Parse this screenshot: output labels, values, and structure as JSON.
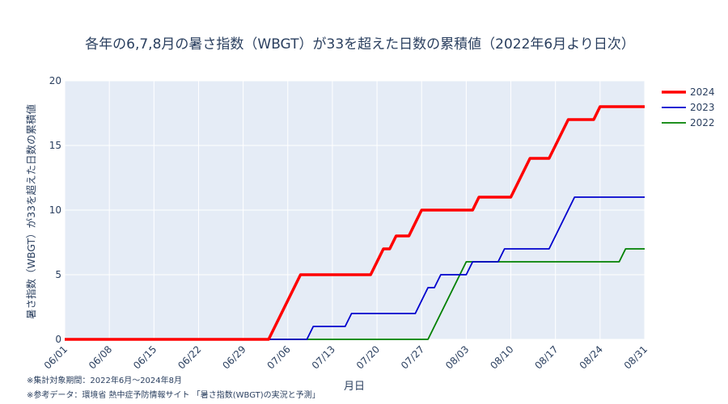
{
  "chart_data": {
    "type": "line",
    "title": "各年の6,7,8月の暑さ指数（WBGT）が33を超えた日数の累積値（2022年6月より日次）",
    "xlabel": "月日",
    "ylabel": "暑さ指数（WBGT）が33を超えた日数の累積値",
    "x_ticks": [
      "06/01",
      "06/08",
      "06/15",
      "06/22",
      "06/29",
      "07/06",
      "07/13",
      "07/20",
      "07/27",
      "08/03",
      "08/10",
      "08/17",
      "08/24",
      "08/31"
    ],
    "y_ticks": [
      "0",
      "5",
      "10",
      "15",
      "20"
    ],
    "ylim": [
      0,
      20
    ],
    "x_unit": "day index from 06/01 (06/01 = 0, 08/31 = 91)",
    "xlim": [
      0,
      91
    ],
    "grid": true,
    "legend_position": "top-right",
    "series": [
      {
        "name": "2024",
        "color": "#ff0000",
        "points": [
          [
            0,
            0
          ],
          [
            32,
            0
          ],
          [
            37,
            5
          ],
          [
            48,
            5
          ],
          [
            50,
            7
          ],
          [
            51,
            7
          ],
          [
            52,
            8
          ],
          [
            54,
            8
          ],
          [
            56,
            10
          ],
          [
            64,
            10
          ],
          [
            65,
            11
          ],
          [
            70,
            11
          ],
          [
            73,
            14
          ],
          [
            76,
            14
          ],
          [
            79,
            17
          ],
          [
            83,
            17
          ],
          [
            84,
            18
          ],
          [
            91,
            18
          ]
        ]
      },
      {
        "name": "2023",
        "color": "#0000cd",
        "points": [
          [
            0,
            0
          ],
          [
            38,
            0
          ],
          [
            39,
            1
          ],
          [
            44,
            1
          ],
          [
            45,
            2
          ],
          [
            55,
            2
          ],
          [
            57,
            4
          ],
          [
            58,
            4
          ],
          [
            59,
            5
          ],
          [
            63,
            5
          ],
          [
            64,
            6
          ],
          [
            68,
            6
          ],
          [
            69,
            7
          ],
          [
            76,
            7
          ],
          [
            80,
            11
          ],
          [
            91,
            11
          ]
        ]
      },
      {
        "name": "2022",
        "color": "#008000",
        "points": [
          [
            0,
            0
          ],
          [
            57,
            0
          ],
          [
            63,
            6
          ],
          [
            87,
            6
          ],
          [
            88,
            7
          ],
          [
            91,
            7
          ]
        ]
      }
    ]
  },
  "notes": {
    "period": "※集計対象期間：2022年6月〜2024年8月",
    "source": "※参考データ：環境省 熱中症予防情報サイト 「暑さ指数(WBGT)の実況と予測」"
  }
}
